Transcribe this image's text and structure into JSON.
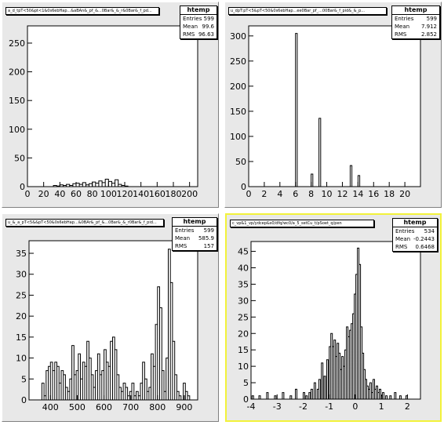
{
  "colors": {
    "pad": "#e8e8e8",
    "frame": "#ffffff",
    "line": "#000000",
    "active_border": "#f2f23a"
  },
  "pads": [
    {
      "title": "a_d_tpT<50&pt<1&0s6ebHap...&aBAn&_pf_&...0Bar&_&_r&0Bar&_f_pd...",
      "stats": {
        "name": "htemp",
        "rows": [
          {
            "label": "Entries",
            "value": "599"
          },
          {
            "label": "Mean",
            "value": "99.6"
          },
          {
            "label": "RMS",
            "value": "96.63"
          }
        ]
      }
    },
    {
      "title": "u_dpT:pT<5&pT<50&0s6ebHap...ee0Bar_pf_...00Bar&_f_pid&_&_p...",
      "stats": {
        "name": "htemp",
        "rows": [
          {
            "label": "Entries",
            "value": "599"
          },
          {
            "label": "Mean",
            "value": "7.912"
          },
          {
            "label": "RMS",
            "value": "2.852"
          }
        ]
      }
    },
    {
      "title": "u_&_a_pT<5&&pT<50&0s6ebHap...&0BAr&_pf_&...0Bar&_&_r0Bar&_f_pid...",
      "stats": {
        "name": "htemp",
        "rows": [
          {
            "label": "Entries",
            "value": "599"
          },
          {
            "label": "Mean",
            "value": "585.9"
          },
          {
            "label": "RMS",
            "value": "157"
          }
        ]
      }
    },
    {
      "title": "c_vp&1_vp/ydcep&s0/dfq/wc0/a_5_setCu_t/pSoet_q/pen",
      "stats": {
        "name": "htemp",
        "rows": [
          {
            "label": "Entries",
            "value": "534"
          },
          {
            "label": "Mean",
            "value": "-0.2443"
          },
          {
            "label": "RMS",
            "value": "0.6468"
          }
        ]
      }
    }
  ],
  "chart_data": [
    {
      "type": "bar",
      "xlim": [
        0,
        210
      ],
      "ylim": [
        0,
        280
      ],
      "x_ticks": [
        0,
        20,
        40,
        60,
        80,
        100,
        120,
        140,
        160,
        180,
        200
      ],
      "y_ticks": [
        0,
        50,
        100,
        150,
        200,
        250
      ],
      "bin_width": 4,
      "bins": [
        [
          0,
          0
        ],
        [
          4,
          0
        ],
        [
          8,
          0
        ],
        [
          12,
          0
        ],
        [
          16,
          0
        ],
        [
          20,
          0
        ],
        [
          24,
          0
        ],
        [
          28,
          0
        ],
        [
          32,
          2
        ],
        [
          36,
          1
        ],
        [
          40,
          3
        ],
        [
          44,
          2
        ],
        [
          48,
          4
        ],
        [
          52,
          2
        ],
        [
          56,
          5
        ],
        [
          60,
          6
        ],
        [
          64,
          4
        ],
        [
          68,
          7
        ],
        [
          72,
          3
        ],
        [
          76,
          5
        ],
        [
          80,
          8
        ],
        [
          84,
          6
        ],
        [
          88,
          10
        ],
        [
          92,
          7
        ],
        [
          96,
          13
        ],
        [
          100,
          9
        ],
        [
          104,
          6
        ],
        [
          108,
          12
        ],
        [
          112,
          4
        ],
        [
          116,
          2
        ],
        [
          120,
          1
        ],
        [
          124,
          0
        ]
      ]
    },
    {
      "type": "bar",
      "xlim": [
        0,
        22
      ],
      "ylim": [
        0,
        320
      ],
      "x_ticks": [
        0,
        2,
        4,
        6,
        8,
        10,
        12,
        14,
        16,
        18,
        20
      ],
      "y_ticks": [
        0,
        50,
        100,
        150,
        200,
        250,
        300
      ],
      "bin_width": 0.22,
      "bins": [
        [
          6,
          305
        ],
        [
          8,
          25
        ],
        [
          9,
          136
        ],
        [
          13,
          42
        ],
        [
          14,
          22
        ]
      ]
    },
    {
      "type": "bar",
      "xlim": [
        320,
        950
      ],
      "ylim": [
        0,
        38
      ],
      "x_ticks": [
        400,
        500,
        600,
        700,
        800,
        900
      ],
      "y_ticks": [
        0,
        5,
        10,
        15,
        20,
        25,
        30,
        35
      ],
      "bin_width": 8,
      "bins": [
        [
          368,
          4
        ],
        [
          376,
          1
        ],
        [
          384,
          7
        ],
        [
          392,
          8
        ],
        [
          400,
          9
        ],
        [
          408,
          7
        ],
        [
          416,
          9
        ],
        [
          424,
          8
        ],
        [
          432,
          4
        ],
        [
          440,
          7
        ],
        [
          448,
          6
        ],
        [
          456,
          3
        ],
        [
          464,
          2
        ],
        [
          472,
          5
        ],
        [
          480,
          13
        ],
        [
          488,
          6
        ],
        [
          496,
          7
        ],
        [
          504,
          11
        ],
        [
          512,
          5
        ],
        [
          520,
          9
        ],
        [
          528,
          8
        ],
        [
          536,
          14
        ],
        [
          544,
          10
        ],
        [
          552,
          6
        ],
        [
          560,
          3
        ],
        [
          568,
          7
        ],
        [
          576,
          11
        ],
        [
          584,
          6
        ],
        [
          592,
          7
        ],
        [
          600,
          12
        ],
        [
          608,
          9
        ],
        [
          616,
          8
        ],
        [
          624,
          14
        ],
        [
          632,
          15
        ],
        [
          640,
          12
        ],
        [
          648,
          6
        ],
        [
          656,
          3
        ],
        [
          664,
          2
        ],
        [
          672,
          4
        ],
        [
          680,
          3
        ],
        [
          688,
          1
        ],
        [
          696,
          2
        ],
        [
          704,
          4
        ],
        [
          712,
          1
        ],
        [
          720,
          2
        ],
        [
          728,
          1
        ],
        [
          736,
          4
        ],
        [
          744,
          9
        ],
        [
          752,
          5
        ],
        [
          760,
          2
        ],
        [
          768,
          3
        ],
        [
          776,
          11
        ],
        [
          784,
          8
        ],
        [
          792,
          18
        ],
        [
          800,
          27
        ],
        [
          808,
          22
        ],
        [
          816,
          7
        ],
        [
          824,
          2
        ],
        [
          832,
          10
        ],
        [
          840,
          36
        ],
        [
          848,
          28
        ],
        [
          856,
          14
        ],
        [
          864,
          6
        ],
        [
          872,
          2
        ],
        [
          880,
          1
        ],
        [
          888,
          0
        ],
        [
          896,
          4
        ],
        [
          904,
          2
        ],
        [
          912,
          1
        ],
        [
          920,
          0
        ]
      ]
    },
    {
      "type": "bar",
      "xlim": [
        -4,
        2.5
      ],
      "ylim": [
        0,
        48
      ],
      "x_ticks": [
        -4,
        -3,
        -2,
        -1,
        0,
        1,
        2
      ],
      "y_ticks": [
        0,
        5,
        10,
        15,
        20,
        25,
        30,
        35,
        40,
        45
      ],
      "bin_width": 0.06,
      "bins": [
        [
          -3.96,
          1
        ],
        [
          -3.7,
          1
        ],
        [
          -3.4,
          2
        ],
        [
          -3.1,
          1
        ],
        [
          -2.8,
          2
        ],
        [
          -2.5,
          1
        ],
        [
          -2.3,
          3
        ],
        [
          -2.0,
          2
        ],
        [
          -1.9,
          1
        ],
        [
          -1.78,
          2
        ],
        [
          -1.7,
          3
        ],
        [
          -1.58,
          5
        ],
        [
          -1.46,
          3
        ],
        [
          -1.4,
          6
        ],
        [
          -1.3,
          11
        ],
        [
          -1.2,
          7
        ],
        [
          -1.1,
          12
        ],
        [
          -1.0,
          16
        ],
        [
          -0.94,
          20
        ],
        [
          -0.88,
          16
        ],
        [
          -0.82,
          18
        ],
        [
          -0.76,
          13
        ],
        [
          -0.7,
          17
        ],
        [
          -0.64,
          14
        ],
        [
          -0.58,
          9
        ],
        [
          -0.52,
          13
        ],
        [
          -0.46,
          10
        ],
        [
          -0.4,
          15
        ],
        [
          -0.34,
          22
        ],
        [
          -0.28,
          19
        ],
        [
          -0.22,
          21
        ],
        [
          -0.16,
          23
        ],
        [
          -0.1,
          26
        ],
        [
          -0.04,
          32
        ],
        [
          0.02,
          38
        ],
        [
          0.08,
          46
        ],
        [
          0.14,
          41
        ],
        [
          0.2,
          22
        ],
        [
          0.26,
          14
        ],
        [
          0.32,
          9
        ],
        [
          0.38,
          6
        ],
        [
          0.44,
          4
        ],
        [
          0.5,
          3
        ],
        [
          0.56,
          5
        ],
        [
          0.62,
          2
        ],
        [
          0.68,
          6
        ],
        [
          0.74,
          3
        ],
        [
          0.8,
          4
        ],
        [
          0.86,
          2
        ],
        [
          0.92,
          3
        ],
        [
          0.98,
          1
        ],
        [
          1.04,
          2
        ],
        [
          1.16,
          1
        ],
        [
          1.32,
          1
        ],
        [
          1.5,
          2
        ],
        [
          1.7,
          1
        ],
        [
          1.94,
          1
        ]
      ]
    }
  ]
}
